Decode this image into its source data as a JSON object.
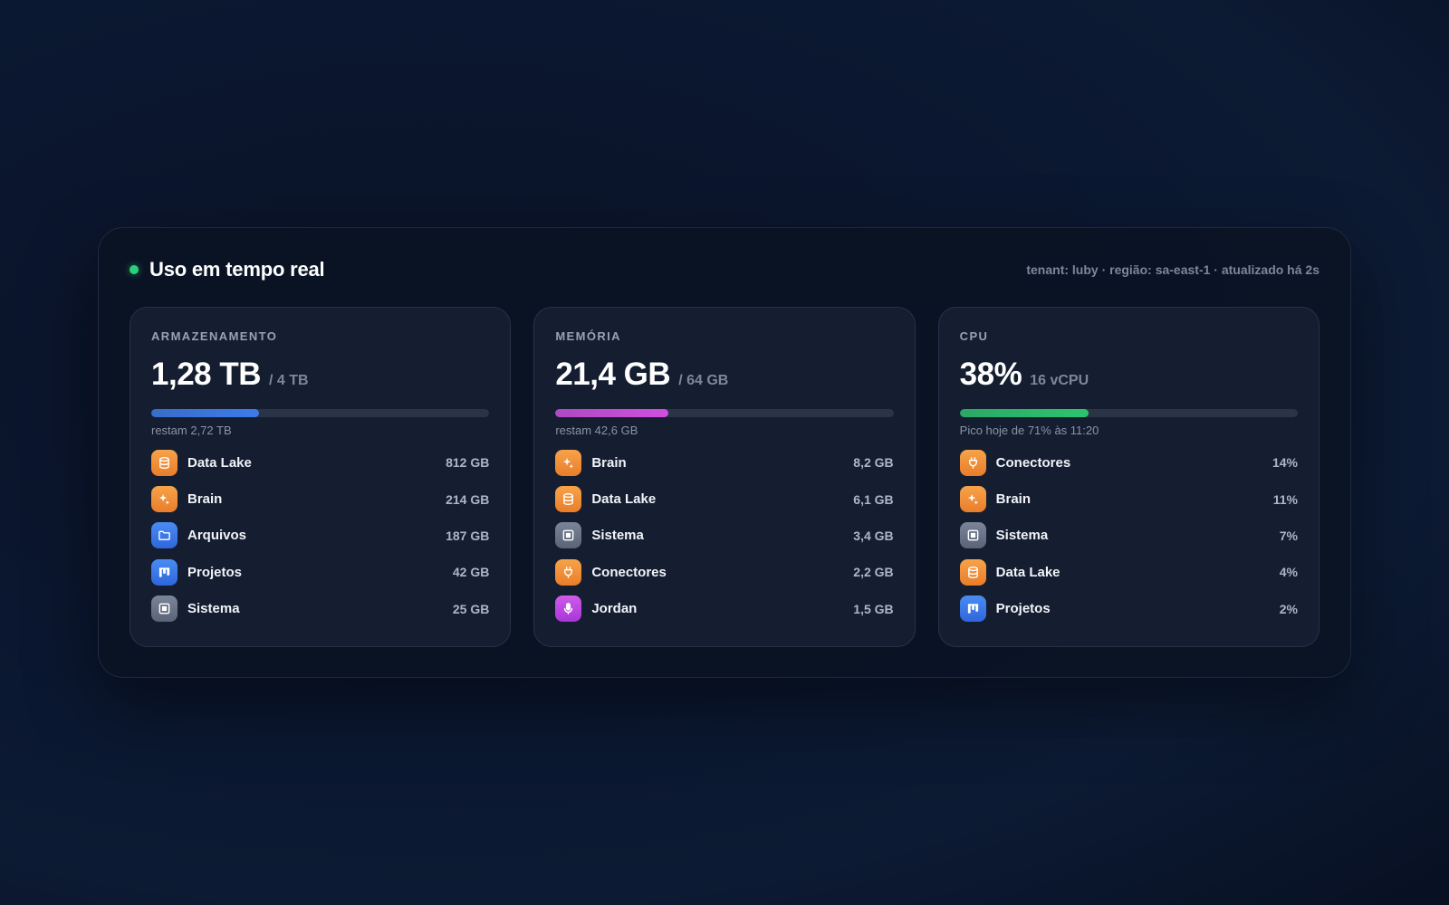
{
  "header": {
    "title": "Uso em tempo real",
    "meta": "tenant: luby · região: sa-east-1 · atualizado há 2s"
  },
  "cards": [
    {
      "label": "ARMAZENAMENTO",
      "value": "1,28 TB",
      "cap": "/ 4 TB",
      "fill_fraction": 0.32,
      "bar_color": "#3d7bea",
      "sub": "restam 2,72 TB",
      "items": [
        {
          "name": "Data Lake",
          "value": "812 GB",
          "icon": "database-icon",
          "color": "orange"
        },
        {
          "name": "Brain",
          "value": "214 GB",
          "icon": "sparkle-icon",
          "color": "orange"
        },
        {
          "name": "Arquivos",
          "value": "187 GB",
          "icon": "folder-icon",
          "color": "blue"
        },
        {
          "name": "Projetos",
          "value": "42 GB",
          "icon": "board-icon",
          "color": "blue"
        },
        {
          "name": "Sistema",
          "value": "25 GB",
          "icon": "chip-icon",
          "color": "gray"
        }
      ]
    },
    {
      "label": "MEMÓRIA",
      "value": "21,4 GB",
      "cap": "/ 64 GB",
      "fill_fraction": 0.334,
      "bar_color": "#d04fe0",
      "sub": "restam 42,6 GB",
      "items": [
        {
          "name": "Brain",
          "value": "8,2 GB",
          "icon": "sparkle-icon",
          "color": "orange"
        },
        {
          "name": "Data Lake",
          "value": "6,1 GB",
          "icon": "database-icon",
          "color": "orange"
        },
        {
          "name": "Sistema",
          "value": "3,4 GB",
          "icon": "chip-icon",
          "color": "gray"
        },
        {
          "name": "Conectores",
          "value": "2,2 GB",
          "icon": "plug-icon",
          "color": "orange"
        },
        {
          "name": "Jordan",
          "value": "1,5 GB",
          "icon": "microphone-icon",
          "color": "purple"
        }
      ]
    },
    {
      "label": "CPU",
      "value": "38%",
      "cap": "16 vCPU",
      "fill_fraction": 0.38,
      "bar_color": "#2bc56e",
      "sub": "Pico hoje de 71% às 11:20",
      "items": [
        {
          "name": "Conectores",
          "value": "14%",
          "icon": "plug-icon",
          "color": "orange"
        },
        {
          "name": "Brain",
          "value": "11%",
          "icon": "sparkle-icon",
          "color": "orange"
        },
        {
          "name": "Sistema",
          "value": "7%",
          "icon": "chip-icon",
          "color": "gray"
        },
        {
          "name": "Data Lake",
          "value": "4%",
          "icon": "database-icon",
          "color": "orange"
        },
        {
          "name": "Projetos",
          "value": "2%",
          "icon": "board-icon",
          "color": "blue"
        }
      ]
    }
  ]
}
